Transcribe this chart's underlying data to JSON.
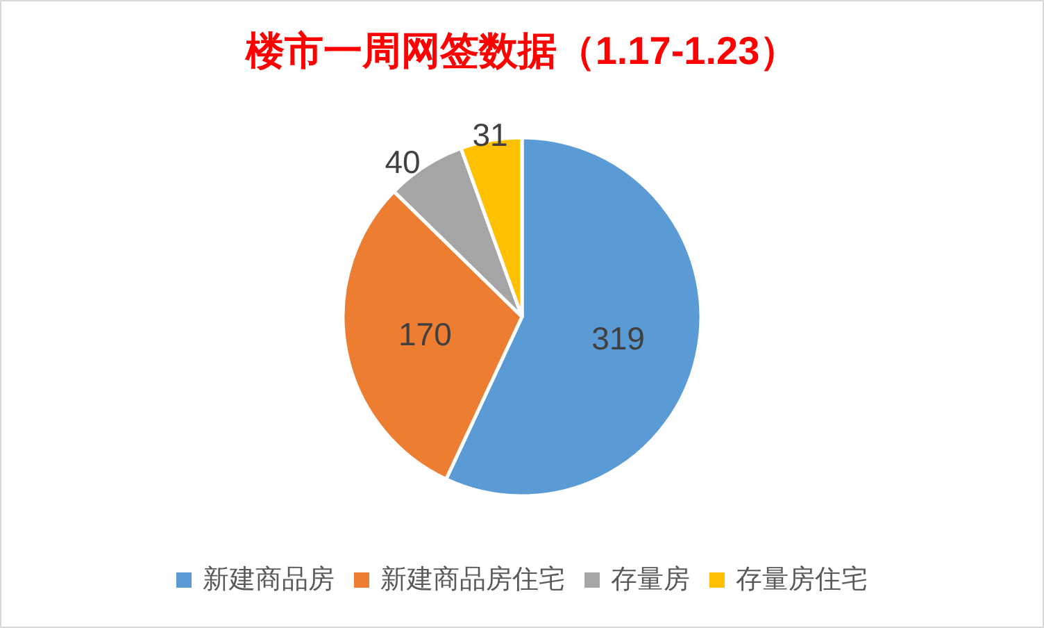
{
  "chart_data": {
    "type": "pie",
    "title": "楼市一周网签数据（1.17-1.23）",
    "categories": [
      "新建商品房",
      "新建商品房住宅",
      "存量房",
      "存量房住宅"
    ],
    "values": [
      319,
      170,
      40,
      31
    ],
    "colors": [
      "#5b9bd5",
      "#ed7d31",
      "#a5a5a5",
      "#ffc000"
    ],
    "data_labels": true,
    "legend": "bottom"
  }
}
